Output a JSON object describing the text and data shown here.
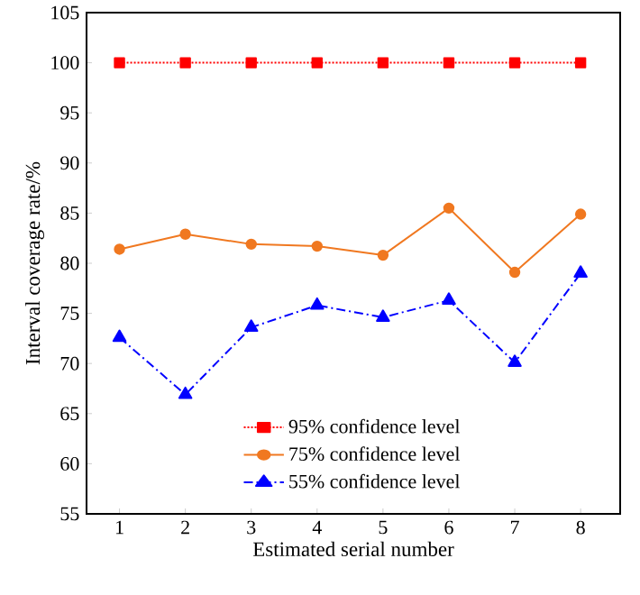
{
  "chart_data": {
    "type": "line",
    "xlabel": "Estimated serial number",
    "ylabel": "Interval coverage rate/%",
    "x": [
      1,
      2,
      3,
      4,
      5,
      6,
      7,
      8
    ],
    "series": [
      {
        "name": "95% confidence level",
        "color": "#ff0000",
        "marker": "square",
        "line_style": "dotted",
        "values": [
          100,
          100,
          100,
          100,
          100,
          100,
          100,
          100
        ]
      },
      {
        "name": "75% confidence level",
        "color": "#f07820",
        "marker": "circle",
        "line_style": "solid",
        "values": [
          81.4,
          82.9,
          81.9,
          81.7,
          80.8,
          85.5,
          79.1,
          84.9
        ]
      },
      {
        "name": "55% confidence level",
        "color": "#0000ff",
        "marker": "triangle",
        "line_style": "dashdot",
        "values": [
          72.6,
          66.9,
          73.6,
          75.8,
          74.6,
          76.3,
          70.1,
          79.0
        ]
      }
    ],
    "xlim": [
      0.5,
      8.6
    ],
    "ylim": [
      55,
      105
    ],
    "xticks": [
      1,
      2,
      3,
      4,
      5,
      6,
      7,
      8
    ],
    "yticks": [
      55,
      60,
      65,
      70,
      75,
      80,
      85,
      90,
      95,
      100,
      105
    ],
    "grid": false,
    "legend": "bottom"
  }
}
